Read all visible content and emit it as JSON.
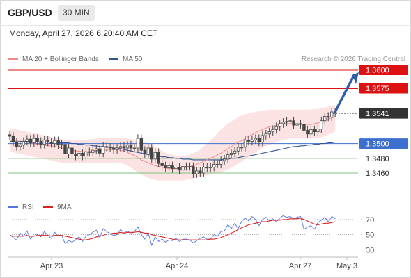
{
  "header": {
    "symbol": "GBP/USD",
    "timeframe": "30 MIN"
  },
  "datetime": "Monday, April 27, 2026 6:20:40 AM CET",
  "legend": {
    "ma20": "MA 20 + Bollinger Bands",
    "ma50": "MA 50",
    "credit": "Research © 2026 Trading Central"
  },
  "rsi_legend": {
    "rsi": "RSI",
    "ma9": "9MA"
  },
  "colors": {
    "resistance": "#dd1111",
    "support_main": "#3d6fcf",
    "support_minor": "#7cc07c",
    "band": "#fbd9d9",
    "ma20": "#f08888",
    "ma50": "#2f5597",
    "current": "#333333",
    "arrow": "#2f5fa8",
    "rsi": "#5577dd",
    "rsi_ma": "#dd2222"
  },
  "chart_data": [
    {
      "type": "candlestick",
      "title": "GBP/USD",
      "timeframe": "30 MIN",
      "x_ticks": [
        "Apr 23",
        "Apr 24",
        "Apr 27",
        "May 3"
      ],
      "ylim": [
        1.3428,
        1.3608
      ],
      "levels": [
        {
          "label": "1.3600",
          "value": 1.36,
          "kind": "resistance"
        },
        {
          "label": "1.3575",
          "value": 1.3575,
          "kind": "resistance"
        },
        {
          "label": "1.3541",
          "value": 1.3541,
          "kind": "current"
        },
        {
          "label": "1.3500",
          "value": 1.35,
          "kind": "support_main"
        },
        {
          "label": "1.3480",
          "value": 1.348,
          "kind": "support_minor"
        },
        {
          "label": "1.3460",
          "value": 1.346,
          "kind": "support_minor"
        }
      ],
      "projection": {
        "from": 1.3541,
        "to": 1.36
      },
      "close": [
        1.351,
        1.3502,
        1.3496,
        1.3498,
        1.3503,
        1.3506,
        1.3501,
        1.3507,
        1.3503,
        1.3499,
        1.3505,
        1.3502,
        1.35,
        1.3504,
        1.3498,
        1.3499,
        1.3486,
        1.3494,
        1.3486,
        1.3483,
        1.3487,
        1.3483,
        1.3489,
        1.3488,
        1.3491,
        1.3493,
        1.3487,
        1.3496,
        1.3495,
        1.3494,
        1.3492,
        1.3494,
        1.3496,
        1.3494,
        1.3498,
        1.3494,
        1.3494,
        1.3507,
        1.3491,
        1.3486,
        1.3494,
        1.3479,
        1.3488,
        1.3473,
        1.347,
        1.3467,
        1.347,
        1.3466,
        1.3468,
        1.3464,
        1.3469,
        1.3469,
        1.3469,
        1.3459,
        1.3463,
        1.346,
        1.3468,
        1.3467,
        1.3468,
        1.3472,
        1.3472,
        1.3477,
        1.3479,
        1.3485,
        1.3487,
        1.349,
        1.3495,
        1.3495,
        1.3505,
        1.3503,
        1.3505,
        1.3507,
        1.3502,
        1.3511,
        1.3513,
        1.3516,
        1.3519,
        1.3523,
        1.3527,
        1.3529,
        1.353,
        1.3531,
        1.3525,
        1.3527,
        1.3526,
        1.3518,
        1.3513,
        1.3519,
        1.3516,
        1.352,
        1.3531,
        1.3537,
        1.3536,
        1.3543,
        1.3541
      ],
      "ma20": [
        1.3505,
        1.3504,
        1.3503,
        1.3502,
        1.3502,
        1.3502,
        1.3501,
        1.35,
        1.3499,
        1.3499,
        1.3498,
        1.3497,
        1.3497,
        1.3496,
        1.3495,
        1.3494,
        1.3493,
        1.3492,
        1.3491,
        1.349,
        1.349,
        1.3489,
        1.3489,
        1.3489,
        1.3489,
        1.349,
        1.349,
        1.3491,
        1.3491,
        1.3492,
        1.3492,
        1.3492,
        1.3491,
        1.349,
        1.3488,
        1.3486,
        1.3484,
        1.3481,
        1.3478,
        1.3476,
        1.3474,
        1.3472,
        1.347,
        1.3469,
        1.3468,
        1.3467,
        1.3466,
        1.3466,
        1.3466,
        1.3466,
        1.3467,
        1.3468,
        1.3469,
        1.347,
        1.3472,
        1.3474,
        1.3476,
        1.3478,
        1.348,
        1.3482,
        1.3485,
        1.3487,
        1.349,
        1.3493,
        1.3496,
        1.3499,
        1.3502,
        1.3504,
        1.3507,
        1.351,
        1.3512,
        1.3515,
        1.3517,
        1.3519,
        1.3521,
        1.3523,
        1.3524,
        1.3525,
        1.3526,
        1.3527,
        1.3527,
        1.3527,
        1.3527,
        1.3526,
        1.3526,
        1.3526,
        1.3526,
        1.3526,
        1.3527,
        1.3528,
        1.353,
        1.3531,
        1.3533,
        1.3535,
        1.3536
      ],
      "bb_upper": [
        1.3521,
        1.352,
        1.3519,
        1.3518,
        1.3517,
        1.3516,
        1.3515,
        1.3514,
        1.3513,
        1.3512,
        1.3511,
        1.351,
        1.3509,
        1.3508,
        1.3507,
        1.3506,
        1.3505,
        1.3505,
        1.3505,
        1.3505,
        1.3505,
        1.3505,
        1.3505,
        1.3506,
        1.3506,
        1.3507,
        1.3507,
        1.3508,
        1.3508,
        1.3508,
        1.3508,
        1.3508,
        1.3508,
        1.3508,
        1.3507,
        1.3506,
        1.3505,
        1.3504,
        1.3503,
        1.3502,
        1.3501,
        1.3499,
        1.3496,
        1.3493,
        1.349,
        1.3488,
        1.3486,
        1.3485,
        1.3484,
        1.3484,
        1.3484,
        1.3484,
        1.3485,
        1.3487,
        1.3489,
        1.3492,
        1.3496,
        1.35,
        1.3504,
        1.3509,
        1.3514,
        1.3519,
        1.3523,
        1.3527,
        1.353,
        1.3533,
        1.3536,
        1.3538,
        1.354,
        1.3541,
        1.3542,
        1.3543,
        1.3544,
        1.3545,
        1.3545,
        1.3546,
        1.3546,
        1.3546,
        1.3546,
        1.3546,
        1.3546,
        1.3546,
        1.3546,
        1.3546,
        1.3546,
        1.3546,
        1.3546,
        1.3546,
        1.3547,
        1.3547,
        1.3548,
        1.3549,
        1.355,
        1.3551,
        1.3552
      ],
      "bb_lower": [
        1.3489,
        1.3488,
        1.3487,
        1.3486,
        1.3485,
        1.3484,
        1.3483,
        1.3482,
        1.3481,
        1.348,
        1.3479,
        1.3478,
        1.3477,
        1.3476,
        1.3475,
        1.3474,
        1.3474,
        1.3474,
        1.3474,
        1.3474,
        1.3474,
        1.3474,
        1.3474,
        1.3474,
        1.3474,
        1.3474,
        1.3474,
        1.3474,
        1.3474,
        1.3474,
        1.3474,
        1.3474,
        1.3474,
        1.3472,
        1.347,
        1.3467,
        1.3464,
        1.3461,
        1.3458,
        1.3456,
        1.3454,
        1.3452,
        1.3451,
        1.345,
        1.345,
        1.345,
        1.345,
        1.345,
        1.345,
        1.345,
        1.345,
        1.3451,
        1.3452,
        1.3453,
        1.3454,
        1.3455,
        1.3456,
        1.3457,
        1.3458,
        1.3459,
        1.346,
        1.3461,
        1.3463,
        1.3465,
        1.3467,
        1.347,
        1.3473,
        1.3476,
        1.3479,
        1.3482,
        1.3485,
        1.3488,
        1.3491,
        1.3494,
        1.3496,
        1.3498,
        1.35,
        1.3502,
        1.3504,
        1.3505,
        1.3506,
        1.3507,
        1.3507,
        1.3507,
        1.3507,
        1.3507,
        1.3507,
        1.3507,
        1.3507,
        1.3508,
        1.3509,
        1.351,
        1.3512,
        1.3514,
        1.3516
      ],
      "ma50": [
        1.3503,
        1.3503,
        1.3503,
        1.3503,
        1.3503,
        1.3503,
        1.3502,
        1.3502,
        1.3502,
        1.3502,
        1.3502,
        1.3502,
        1.3502,
        1.3502,
        1.3501,
        1.3501,
        1.3501,
        1.3501,
        1.35,
        1.35,
        1.3499,
        1.3499,
        1.3498,
        1.3498,
        1.3497,
        1.3497,
        1.3496,
        1.3496,
        1.3495,
        1.3495,
        1.3494,
        1.3494,
        1.3493,
        1.3492,
        1.3491,
        1.349,
        1.3489,
        1.3488,
        1.3487,
        1.3486,
        1.3485,
        1.3484,
        1.3483,
        1.3483,
        1.3482,
        1.3482,
        1.3481,
        1.3481,
        1.348,
        1.348,
        1.3479,
        1.3479,
        1.3479,
        1.3478,
        1.3478,
        1.3478,
        1.3478,
        1.3478,
        1.3478,
        1.3478,
        1.3478,
        1.3478,
        1.3479,
        1.3479,
        1.348,
        1.348,
        1.3481,
        1.3482,
        1.3483,
        1.3483,
        1.3484,
        1.3485,
        1.3486,
        1.3487,
        1.3488,
        1.3489,
        1.349,
        1.3491,
        1.3492,
        1.3493,
        1.3494,
        1.3495,
        1.3496,
        1.3496,
        1.3497,
        1.3497,
        1.3498,
        1.3498,
        1.3499,
        1.3499,
        1.35,
        1.35,
        1.3501,
        1.3501,
        1.3502
      ]
    },
    {
      "type": "line",
      "title": "RSI",
      "y_ticks": [
        70,
        50,
        30
      ],
      "ylim": [
        22,
        80
      ],
      "series": [
        {
          "name": "RSI",
          "values": [
            50,
            46,
            43,
            52,
            48,
            55,
            44,
            51,
            50,
            47,
            54,
            49,
            45,
            53,
            48,
            49,
            38,
            42,
            40,
            43,
            47,
            41,
            48,
            50,
            53,
            56,
            46,
            58,
            54,
            51,
            49,
            50,
            57,
            52,
            55,
            51,
            54,
            60,
            50,
            44,
            52,
            36,
            47,
            41,
            44,
            40,
            43,
            42,
            45,
            41,
            44,
            44,
            43,
            39,
            42,
            45,
            47,
            44,
            44,
            50,
            48,
            54,
            55,
            63,
            58,
            65,
            58,
            68,
            72,
            68,
            74,
            70,
            62,
            70,
            73,
            68,
            71,
            67,
            72,
            75,
            73,
            74,
            71,
            73,
            74,
            57,
            60,
            62,
            57,
            66,
            69,
            73,
            67,
            74,
            71
          ]
        },
        {
          "name": "9MA",
          "values": [
            49,
            48,
            48,
            48,
            48,
            49,
            48,
            48,
            49,
            49,
            49,
            49,
            48,
            49,
            49,
            49,
            48,
            47,
            46,
            45,
            44,
            43,
            43,
            44,
            45,
            47,
            48,
            49,
            51,
            51,
            52,
            52,
            53,
            52,
            53,
            53,
            53,
            54,
            53,
            52,
            52,
            50,
            49,
            48,
            47,
            46,
            45,
            44,
            43,
            43,
            43,
            43,
            43,
            43,
            43,
            43,
            43,
            43,
            44,
            44,
            45,
            46,
            48,
            50,
            52,
            54,
            57,
            59,
            61,
            63,
            64,
            65,
            66,
            67,
            67,
            68,
            69,
            69,
            69,
            70,
            70,
            71,
            71,
            71,
            72,
            70,
            68,
            66,
            64,
            63,
            64,
            65,
            65,
            66,
            67
          ]
        }
      ]
    }
  ]
}
